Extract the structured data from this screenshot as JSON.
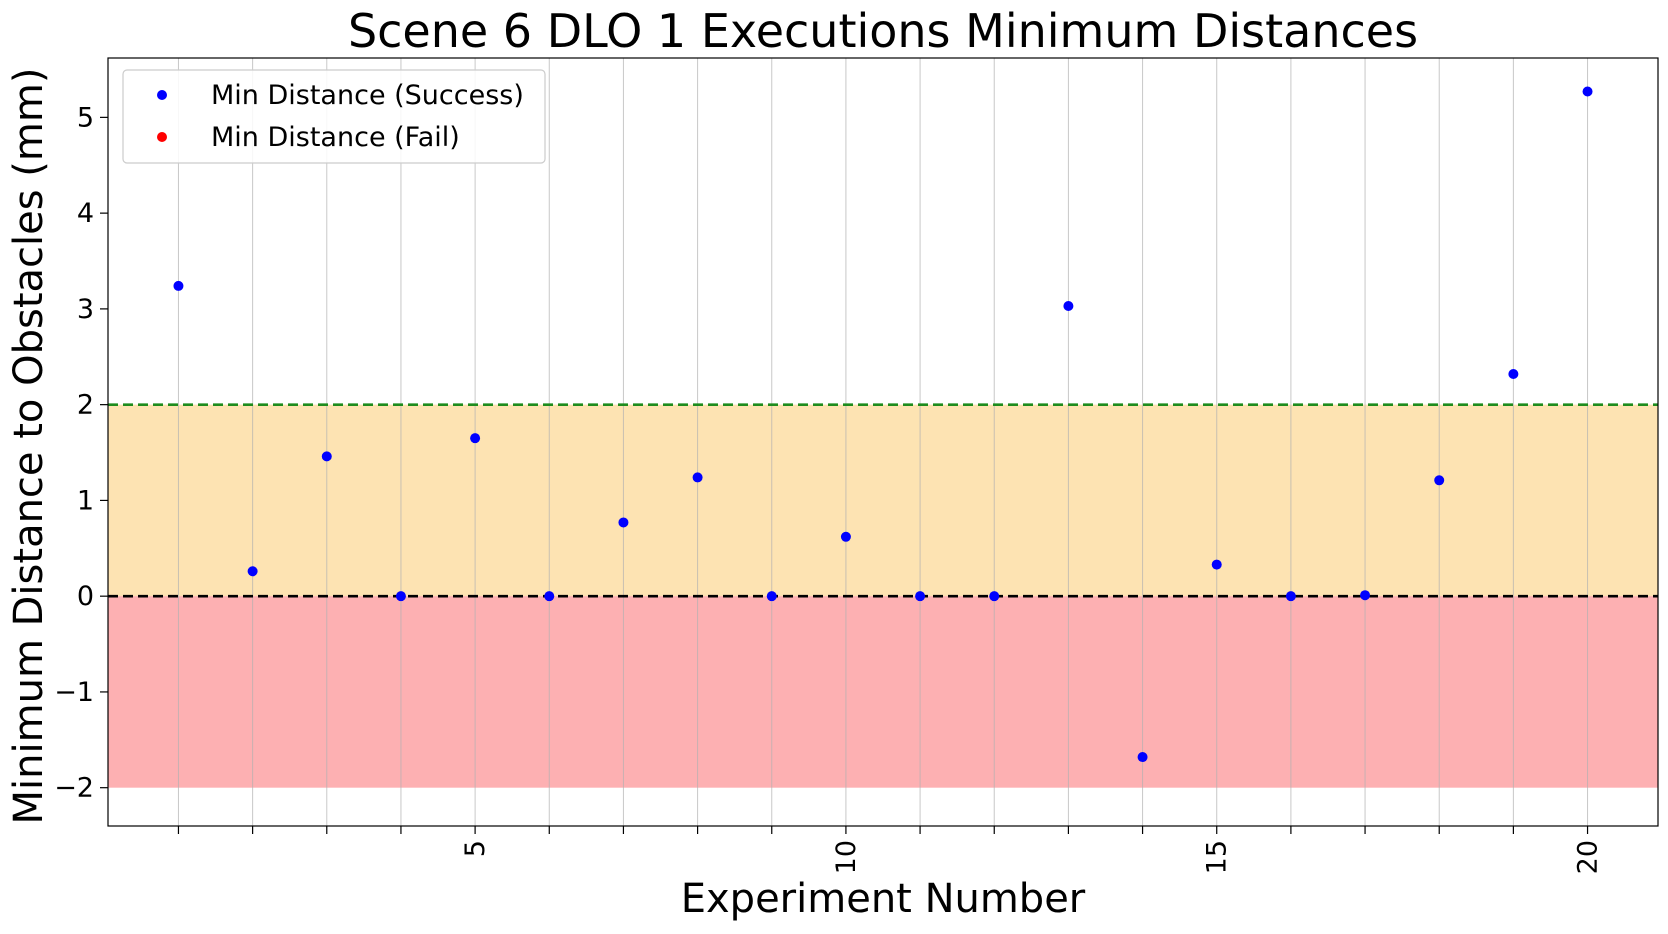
{
  "chart_data": {
    "type": "scatter",
    "title": "Scene 6 DLO 1 Executions Minimum Distances",
    "xlabel": "Experiment Number",
    "ylabel": "Minimum Distance to Obstacles (mm)",
    "xlim": [
      0.05,
      20.95
    ],
    "ylim": [
      -2.4,
      5.62
    ],
    "x_ticks": [
      5,
      10,
      15,
      20
    ],
    "x_minor_gridlines": [
      1,
      2,
      3,
      4,
      5,
      6,
      7,
      8,
      9,
      10,
      11,
      12,
      13,
      14,
      15,
      16,
      17,
      18,
      19,
      20
    ],
    "y_ticks": [
      -2,
      -1,
      0,
      1,
      2,
      3,
      4,
      5
    ],
    "y_tick_labels": [
      "−2",
      "−1",
      "0",
      "1",
      "2",
      "3",
      "4",
      "5"
    ],
    "x_tick_rotation_deg": 90,
    "grid": "vertical",
    "legend_position": "top-left",
    "bands": [
      {
        "from": 0,
        "to": 2,
        "color": "#fde3b2"
      },
      {
        "from": -2,
        "to": 0,
        "color": "#fdb0b2"
      }
    ],
    "reference_lines": [
      {
        "y": 2,
        "color": "#1e8c1e",
        "style": "dashed"
      },
      {
        "y": 0,
        "color": "#000000",
        "style": "dashed"
      }
    ],
    "series": [
      {
        "name": "Min Distance (Success)",
        "color": "#0000ff",
        "x": [
          1,
          2,
          3,
          4,
          5,
          6,
          7,
          8,
          9,
          10,
          11,
          12,
          13,
          14,
          15,
          16,
          17,
          18,
          19,
          20
        ],
        "y": [
          3.24,
          0.26,
          1.46,
          0.0,
          1.65,
          0.0,
          0.77,
          1.24,
          0.0,
          0.62,
          0.0,
          0.0,
          3.03,
          -1.68,
          0.33,
          0.0,
          0.01,
          1.21,
          2.32,
          5.27
        ]
      },
      {
        "name": "Min Distance (Fail)",
        "color": "#ff0000",
        "x": [],
        "y": []
      }
    ]
  }
}
